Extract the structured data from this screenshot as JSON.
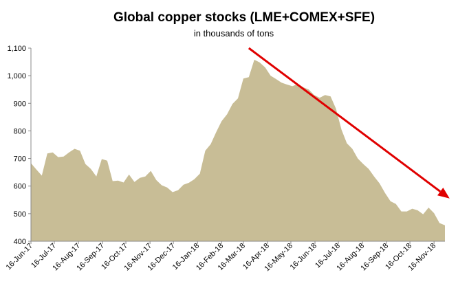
{
  "chart_data": {
    "type": "area",
    "title": "Global copper stocks (LME+COMEX+SFE)",
    "subtitle": "in thousands  of tons",
    "xlabel": "",
    "ylabel": "",
    "ylim": [
      400,
      1100
    ],
    "yticks": [
      "400",
      "500",
      "600",
      "700",
      "800",
      "900",
      "1,000",
      "1,100"
    ],
    "xtick_labels": [
      "16-Jun-17",
      "16-Jul-17",
      "16-Aug-17",
      "16-Sep-17",
      "16-Oct-17",
      "16-Nov-17",
      "16-Dec-17",
      "16-Jan-18",
      "16-Feb-18",
      "16-Mar-18",
      "16-Apr-18",
      "16-May-18",
      "16-Jun-18",
      "16-Jul-18",
      "16-Aug-18",
      "16-Sep-18",
      "16-Oct-18",
      "16-Nov-18"
    ],
    "grid": false,
    "fill_color": "#c8bd96",
    "trend_arrow_color": "#e00000",
    "trend_arrow": {
      "from": [
        "2018-03-23",
        1100
      ],
      "to": [
        "2018-12-06",
        555
      ]
    },
    "series": [
      {
        "points": [
          [
            "2017-06-16",
            683
          ],
          [
            "2017-06-23",
            660
          ],
          [
            "2017-06-30",
            638
          ],
          [
            "2017-07-07",
            718
          ],
          [
            "2017-07-14",
            722
          ],
          [
            "2017-07-21",
            705
          ],
          [
            "2017-07-28",
            707
          ],
          [
            "2017-08-04",
            722
          ],
          [
            "2017-08-11",
            735
          ],
          [
            "2017-08-18",
            728
          ],
          [
            "2017-08-25",
            680
          ],
          [
            "2017-09-01",
            662
          ],
          [
            "2017-09-08",
            635
          ],
          [
            "2017-09-15",
            698
          ],
          [
            "2017-09-22",
            692
          ],
          [
            "2017-09-29",
            618
          ],
          [
            "2017-10-06",
            620
          ],
          [
            "2017-10-13",
            613
          ],
          [
            "2017-10-20",
            642
          ],
          [
            "2017-10-27",
            615
          ],
          [
            "2017-11-03",
            630
          ],
          [
            "2017-11-10",
            635
          ],
          [
            "2017-11-17",
            655
          ],
          [
            "2017-11-24",
            622
          ],
          [
            "2017-12-01",
            603
          ],
          [
            "2017-12-08",
            595
          ],
          [
            "2017-12-15",
            578
          ],
          [
            "2017-12-22",
            585
          ],
          [
            "2017-12-29",
            605
          ],
          [
            "2018-01-05",
            612
          ],
          [
            "2018-01-12",
            625
          ],
          [
            "2018-01-19",
            645
          ],
          [
            "2018-01-26",
            728
          ],
          [
            "2018-02-02",
            752
          ],
          [
            "2018-02-09",
            795
          ],
          [
            "2018-02-16",
            835
          ],
          [
            "2018-02-23",
            860
          ],
          [
            "2018-03-02",
            898
          ],
          [
            "2018-03-09",
            918
          ],
          [
            "2018-03-16",
            990
          ],
          [
            "2018-03-23",
            995
          ],
          [
            "2018-03-30",
            1058
          ],
          [
            "2018-04-06",
            1048
          ],
          [
            "2018-04-13",
            1030
          ],
          [
            "2018-04-20",
            1000
          ],
          [
            "2018-04-27",
            988
          ],
          [
            "2018-05-04",
            975
          ],
          [
            "2018-05-11",
            968
          ],
          [
            "2018-05-18",
            962
          ],
          [
            "2018-05-25",
            970
          ],
          [
            "2018-06-01",
            958
          ],
          [
            "2018-06-08",
            950
          ],
          [
            "2018-06-15",
            930
          ],
          [
            "2018-06-22",
            920
          ],
          [
            "2018-06-29",
            930
          ],
          [
            "2018-07-06",
            925
          ],
          [
            "2018-07-13",
            880
          ],
          [
            "2018-07-20",
            805
          ],
          [
            "2018-07-27",
            755
          ],
          [
            "2018-08-03",
            735
          ],
          [
            "2018-08-10",
            700
          ],
          [
            "2018-08-17",
            680
          ],
          [
            "2018-08-24",
            662
          ],
          [
            "2018-08-31",
            635
          ],
          [
            "2018-09-07",
            610
          ],
          [
            "2018-09-14",
            575
          ],
          [
            "2018-09-21",
            545
          ],
          [
            "2018-09-28",
            535
          ],
          [
            "2018-10-05",
            508
          ],
          [
            "2018-10-12",
            508
          ],
          [
            "2018-10-19",
            518
          ],
          [
            "2018-10-26",
            512
          ],
          [
            "2018-11-02",
            498
          ],
          [
            "2018-11-09",
            522
          ],
          [
            "2018-11-16",
            502
          ],
          [
            "2018-11-23",
            466
          ],
          [
            "2018-11-30",
            458
          ]
        ]
      }
    ]
  }
}
